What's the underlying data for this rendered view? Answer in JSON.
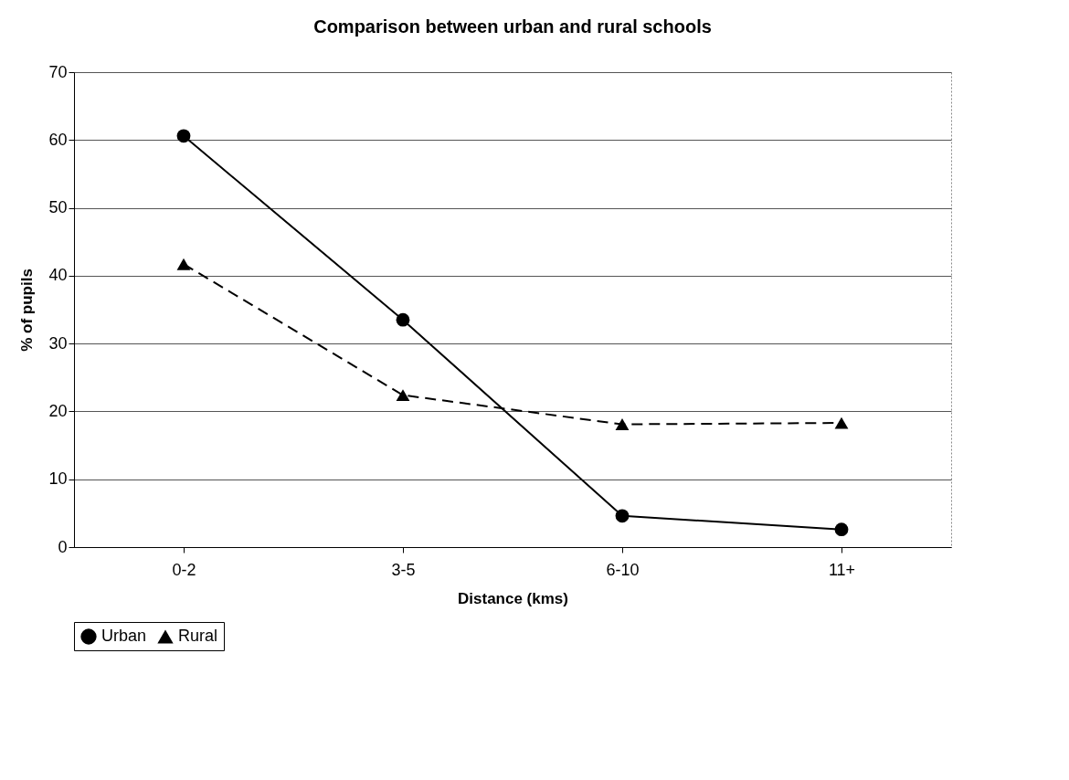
{
  "chart_data": {
    "type": "line",
    "title": "Comparison between urban and rural schools",
    "xlabel": "Distance (kms)",
    "ylabel": "% of pupils",
    "categories": [
      "0-2",
      "3-5",
      "6-10",
      "11+"
    ],
    "series": [
      {
        "name": "Urban",
        "color": "#000000",
        "values": [
          60.6,
          33.5,
          4.6,
          2.6
        ],
        "marker": "circle",
        "line_style": "solid"
      },
      {
        "name": "Rural",
        "color": "#000000",
        "values": [
          41.7,
          22.4,
          18.1,
          18.3
        ],
        "marker": "triangle",
        "line_style": "dashed"
      }
    ],
    "ylim": [
      0,
      70
    ],
    "yticks": [
      0,
      10,
      20,
      30,
      40,
      50,
      60,
      70
    ],
    "grid": "y",
    "legend": "bottom"
  }
}
